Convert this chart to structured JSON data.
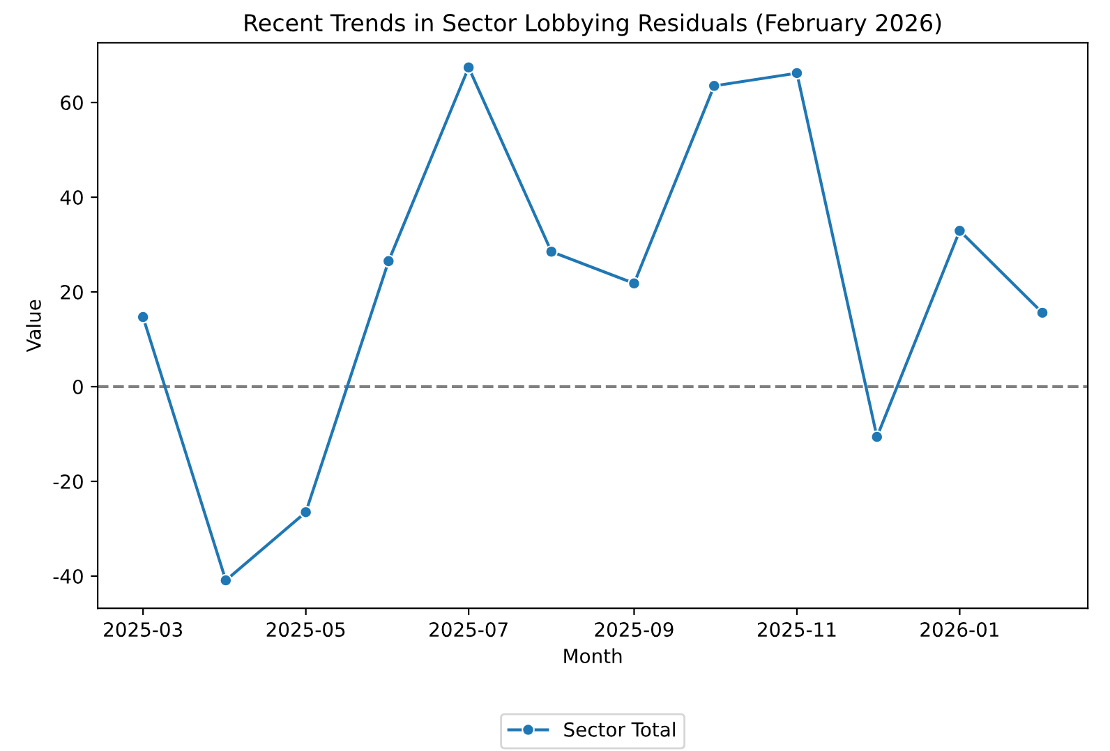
{
  "chart_data": {
    "type": "line",
    "title": "Recent Trends in Sector Lobbying Residuals (February 2026)",
    "xlabel": "Month",
    "ylabel": "Value",
    "x": [
      "2025-03",
      "2025-04",
      "2025-05",
      "2025-06",
      "2025-07",
      "2025-08",
      "2025-09",
      "2025-10",
      "2025-11",
      "2025-12",
      "2026-01",
      "2026-02"
    ],
    "series": [
      {
        "name": "Sector Total",
        "color": "#1f77b4",
        "values": [
          14.7,
          -40.9,
          -26.5,
          26.5,
          67.4,
          28.5,
          21.8,
          63.5,
          66.2,
          -10.6,
          32.9,
          15.6
        ]
      }
    ],
    "xlim": [
      "2025-02-12",
      "2026-02-18"
    ],
    "xticks": [
      {
        "value": "2025-03",
        "label": "2025-03"
      },
      {
        "value": "2025-05",
        "label": "2025-05"
      },
      {
        "value": "2025-07",
        "label": "2025-07"
      },
      {
        "value": "2025-09",
        "label": "2025-09"
      },
      {
        "value": "2025-11",
        "label": "2025-11"
      },
      {
        "value": "2026-01",
        "label": "2026-01"
      }
    ],
    "ylim": [
      -46.8,
      72.6
    ],
    "yticks": [
      -40,
      -20,
      0,
      20,
      40,
      60
    ],
    "ref_lines": [
      {
        "axis": "y",
        "value": 0,
        "color": "#808080",
        "line_style": "dashed"
      }
    ],
    "marker": "circle",
    "line_style": "solid",
    "legend": "bottom",
    "grid": false
  }
}
